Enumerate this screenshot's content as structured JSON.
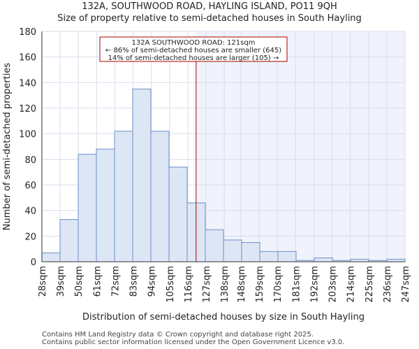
{
  "header": {
    "title": "132A, SOUTHWOOD ROAD, HAYLING ISLAND, PO11 9QH",
    "subtitle": "Size of property relative to semi-detached houses in South Hayling"
  },
  "chart_data": {
    "type": "bar",
    "title": "132A, SOUTHWOOD ROAD, HAYLING ISLAND, PO11 9QH",
    "subtitle": "Size of property relative to semi-detached houses in South Hayling",
    "xlabel": "Distribution of semi-detached houses by size in South Hayling",
    "ylabel": "Number of semi-detached properties",
    "bin_edges": [
      28,
      39,
      50,
      61,
      72,
      83,
      94,
      105,
      116,
      127,
      138,
      148,
      159,
      170,
      181,
      192,
      203,
      214,
      225,
      236,
      247
    ],
    "tick_labels": [
      "28sqm",
      "39sqm",
      "50sqm",
      "61sqm",
      "72sqm",
      "83sqm",
      "94sqm",
      "105sqm",
      "116sqm",
      "127sqm",
      "138sqm",
      "148sqm",
      "159sqm",
      "170sqm",
      "181sqm",
      "192sqm",
      "203sqm",
      "214sqm",
      "225sqm",
      "236sqm",
      "247sqm"
    ],
    "values": [
      7,
      33,
      84,
      88,
      102,
      135,
      102,
      74,
      46,
      25,
      17,
      15,
      8,
      8,
      1,
      3,
      1,
      2,
      1,
      2
    ],
    "ylim": [
      0,
      180
    ],
    "yticks": [
      0,
      20,
      40,
      60,
      80,
      100,
      120,
      140,
      160,
      180
    ],
    "grid": true,
    "property_size": 121,
    "annotation": {
      "line1": "132A SOUTHWOOD ROAD: 121sqm",
      "line2": "← 86% of semi-detached houses are smaller (645)",
      "line3": "14% of semi-detached houses are larger (105) →"
    },
    "colors": {
      "bar_fill": "#dce6f5",
      "bar_stroke": "#6e8fc9",
      "marker_line": "#aa0000",
      "highlight_fill": "#f0f3fc",
      "grid": "#d8deec"
    }
  },
  "footer": {
    "line1": "Contains HM Land Registry data © Crown copyright and database right 2025.",
    "line2": "Contains public sector information licensed under the Open Government Licence v3.0."
  }
}
